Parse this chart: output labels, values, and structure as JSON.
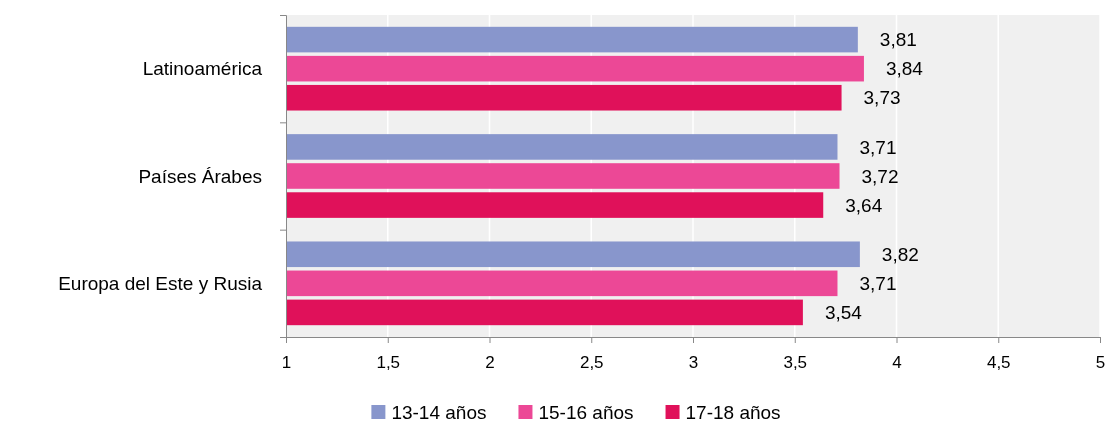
{
  "chart_data": {
    "type": "bar",
    "orientation": "horizontal",
    "categories": [
      "Latinoamérica",
      "Países Árabes",
      "Europa del Este y Rusia"
    ],
    "series": [
      {
        "name": "13-14 años",
        "color": "#8896cc",
        "values": [
          3.81,
          3.71,
          3.82
        ],
        "value_labels": [
          "3,81",
          "3,71",
          "3,82"
        ]
      },
      {
        "name": "15-16 años",
        "color": "#ec4896",
        "values": [
          3.84,
          3.72,
          3.71
        ],
        "value_labels": [
          "3,84",
          "3,72",
          "3,71"
        ]
      },
      {
        "name": "17-18 años",
        "color": "#e0115a",
        "values": [
          3.73,
          3.64,
          3.54
        ],
        "value_labels": [
          "3,73",
          "3,64",
          "3,54"
        ]
      }
    ],
    "xlim": [
      1,
      5
    ],
    "xticks": [
      1,
      {
        "value": 1.5,
        "label": "1,5"
      },
      2,
      {
        "value": 2.5,
        "label": "2,5"
      },
      3,
      {
        "value": 3.5,
        "label": "3,5"
      },
      4,
      {
        "value": 4.5,
        "label": "4,5"
      },
      5
    ],
    "grid": "x",
    "legend": "bottom"
  }
}
